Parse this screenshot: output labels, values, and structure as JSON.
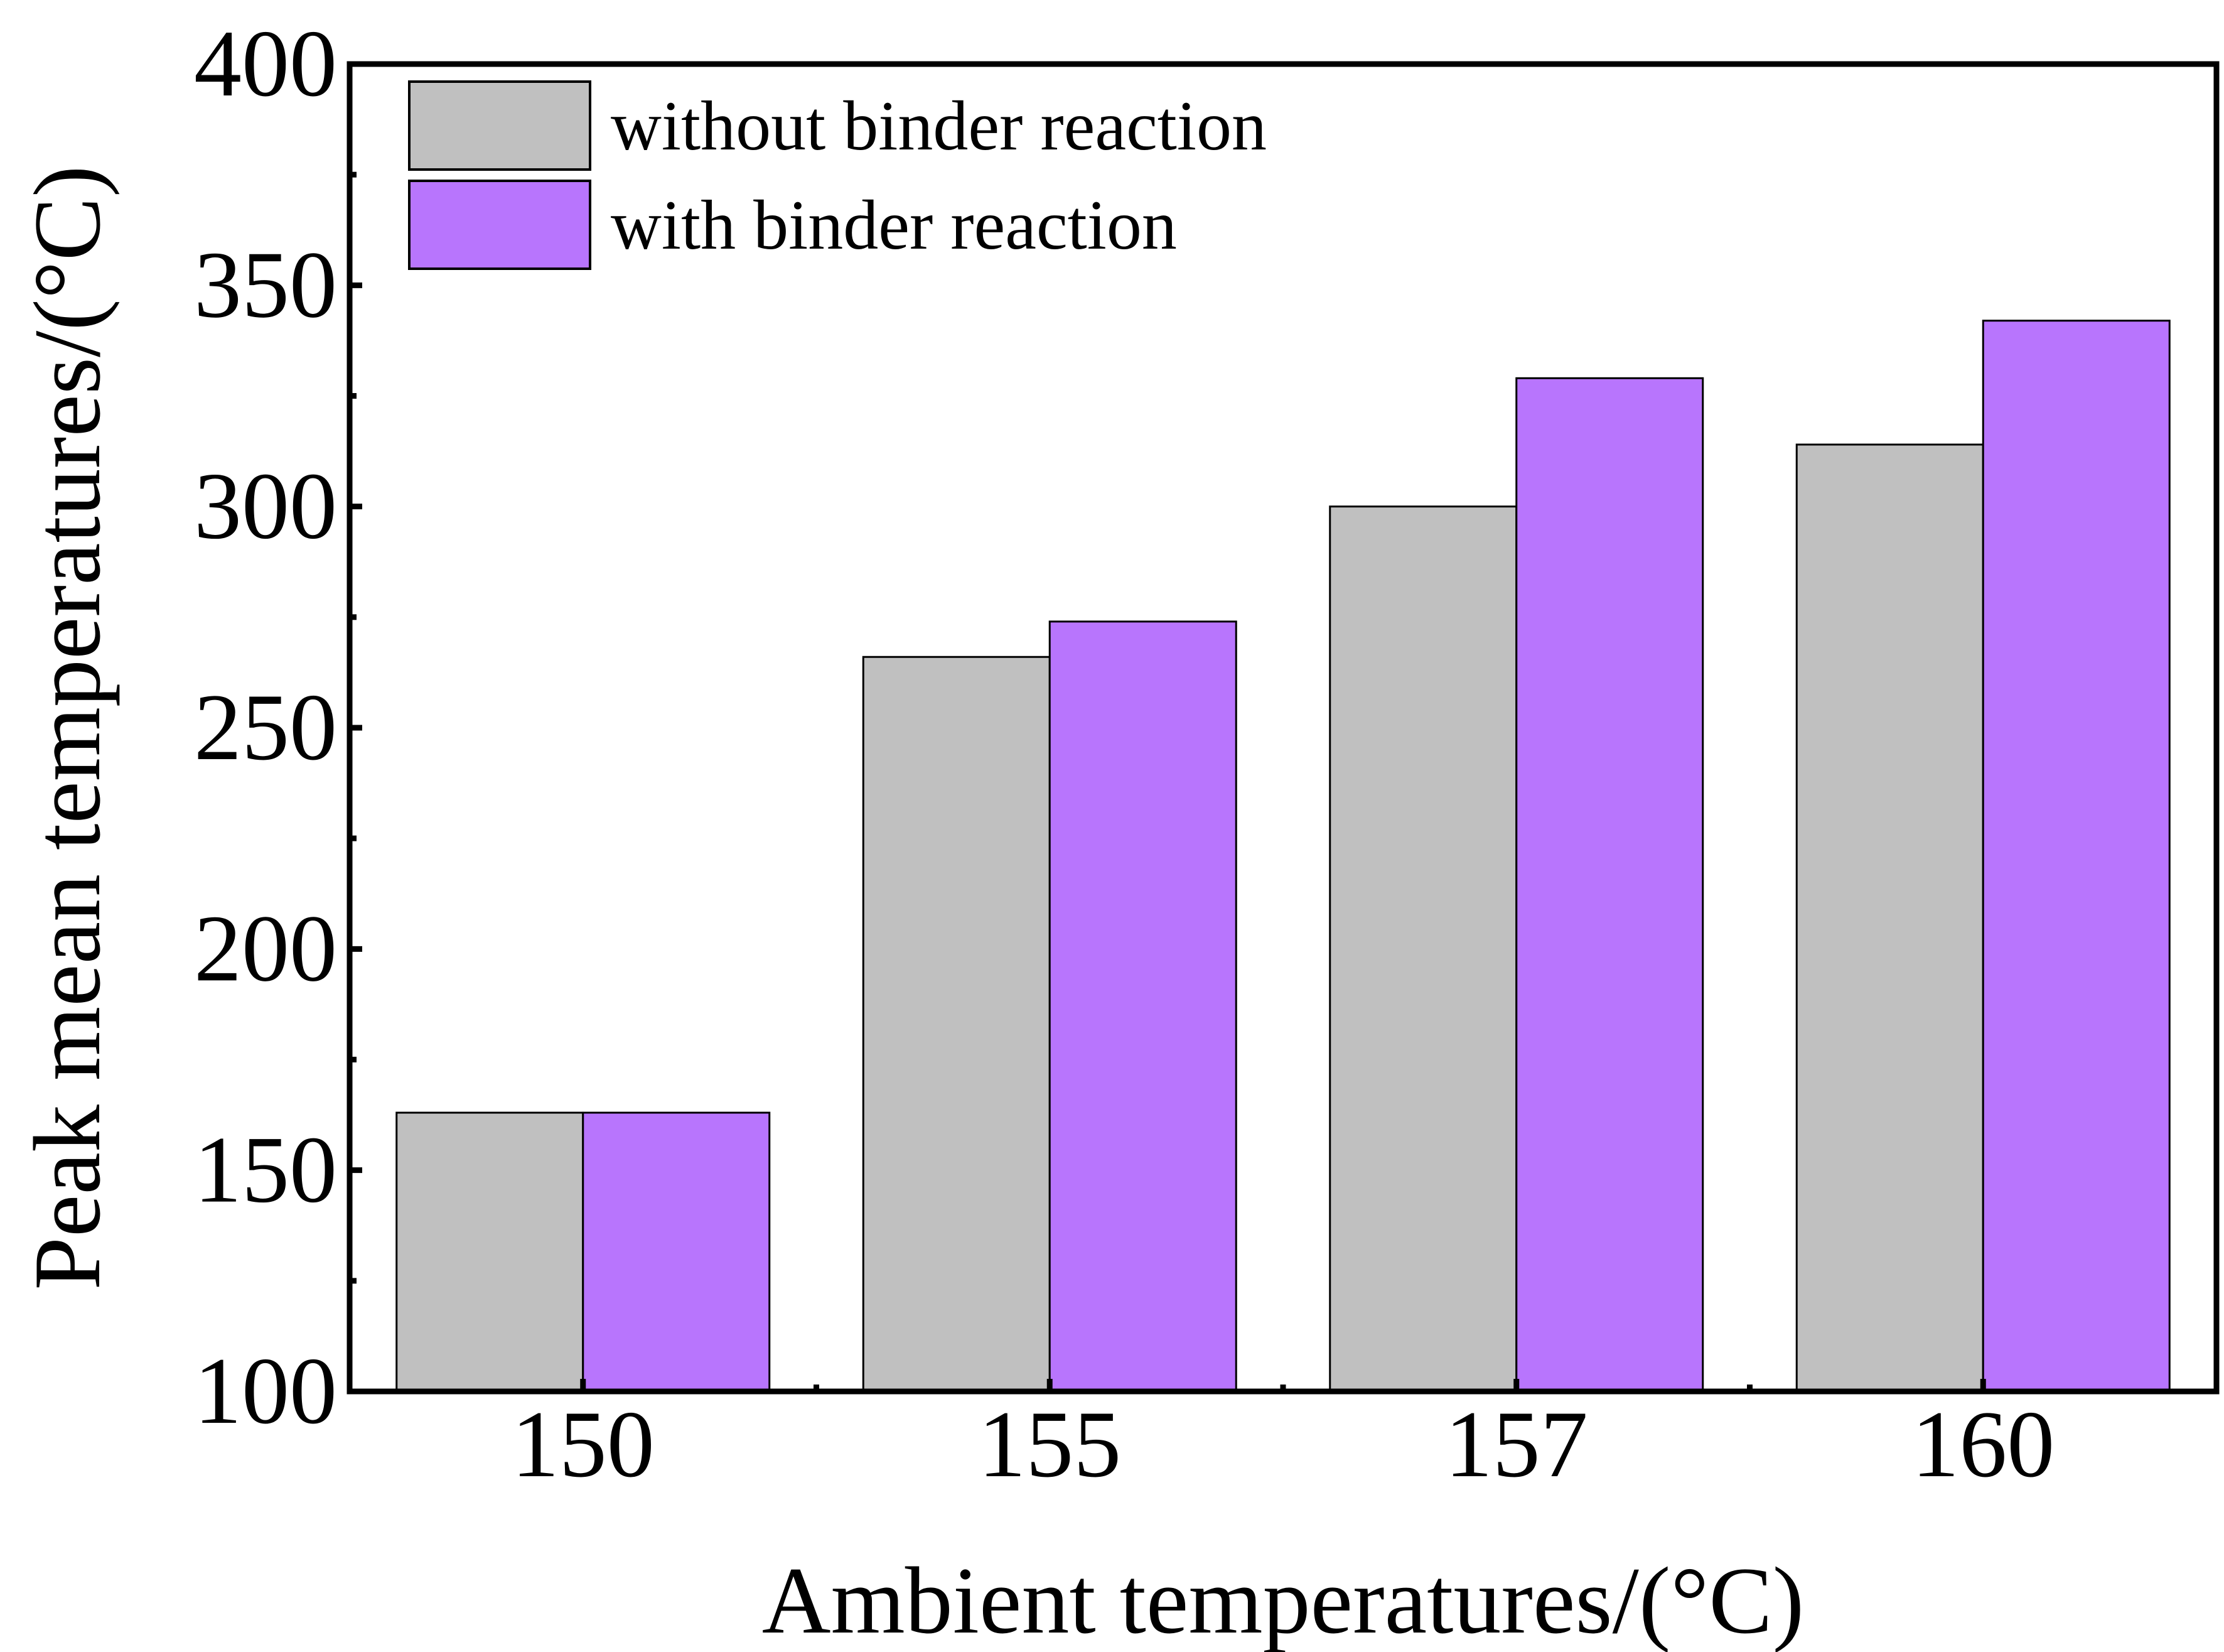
{
  "chart_data": {
    "type": "bar",
    "title": "",
    "xlabel": "Ambient temperatures/(°C)",
    "ylabel": "Peak mean temperatures/(°C)",
    "categories": [
      "150",
      "155",
      "157",
      "160"
    ],
    "series": [
      {
        "name": "without binder reaction",
        "color": "#c0c0c0",
        "values": [
          163,
          266,
          300,
          314
        ]
      },
      {
        "name": "with binder reaction",
        "color": "#b875fd",
        "values": [
          163,
          274,
          329,
          342
        ]
      }
    ],
    "ylim": [
      100,
      400
    ],
    "yticks": [
      100,
      150,
      200,
      250,
      300,
      350,
      400
    ],
    "grid": false,
    "legend_position": "top-left"
  }
}
